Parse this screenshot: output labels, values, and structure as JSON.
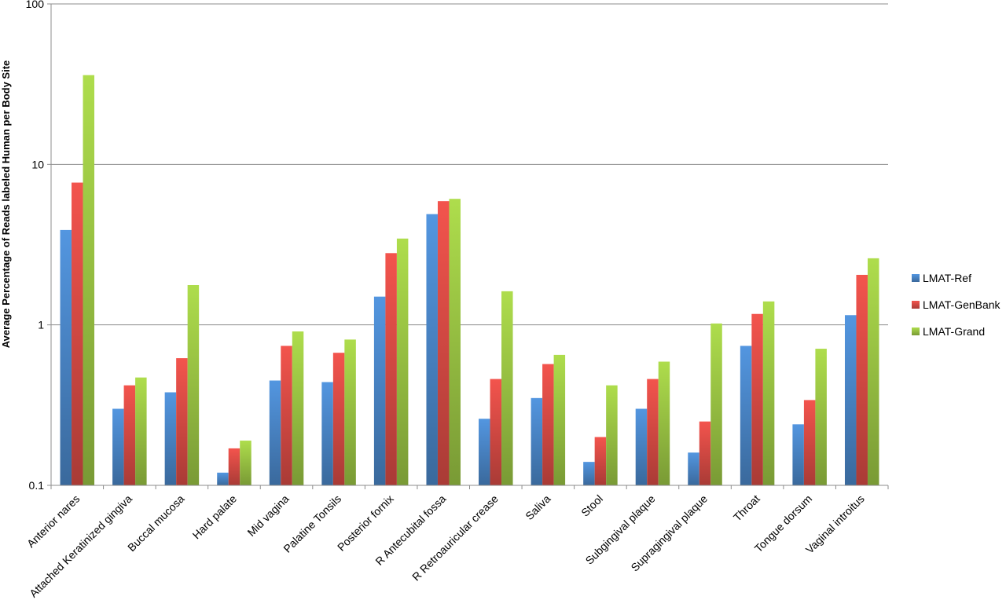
{
  "chart_data": {
    "type": "bar",
    "title": "",
    "xlabel": "",
    "ylabel": "Average Percentage of Reads labeled Human per Body Site",
    "yscale": "log",
    "ylim": [
      0.1,
      100
    ],
    "yticks": [
      "0.1",
      "1",
      "10",
      "100"
    ],
    "grid": "horizontal",
    "legend_position": "right",
    "categories": [
      "Anterior nares",
      "Attached Keratinized gingiva",
      "Buccal mucosa",
      "Hard palate",
      "Mid vagina",
      "Palatine Tonsils",
      "Posterior fornix",
      "R Antecubital fossa",
      "R Retroauricular crease",
      "Saliva",
      "Stool",
      "Subgingival plaque",
      "Supragingival plaque",
      "Throat",
      "Tongue dorsum",
      "Vaginal introitus"
    ],
    "series": [
      {
        "name": "LMAT-Ref",
        "color": "#4a86c8",
        "values": [
          3.9,
          0.3,
          0.38,
          0.12,
          0.45,
          0.44,
          1.5,
          4.9,
          0.26,
          0.35,
          0.14,
          0.3,
          0.16,
          0.74,
          0.24,
          1.15
        ]
      },
      {
        "name": "LMAT-GenBank",
        "color": "#d94b45",
        "values": [
          7.7,
          0.42,
          0.62,
          0.17,
          0.74,
          0.67,
          2.8,
          5.9,
          0.46,
          0.57,
          0.2,
          0.46,
          0.25,
          1.17,
          0.34,
          2.05
        ]
      },
      {
        "name": "LMAT-Grand",
        "color": "#9bc544",
        "values": [
          36,
          0.47,
          1.77,
          0.19,
          0.91,
          0.81,
          3.45,
          6.1,
          1.62,
          0.65,
          0.42,
          0.59,
          1.02,
          1.4,
          0.71,
          2.6
        ]
      }
    ]
  }
}
